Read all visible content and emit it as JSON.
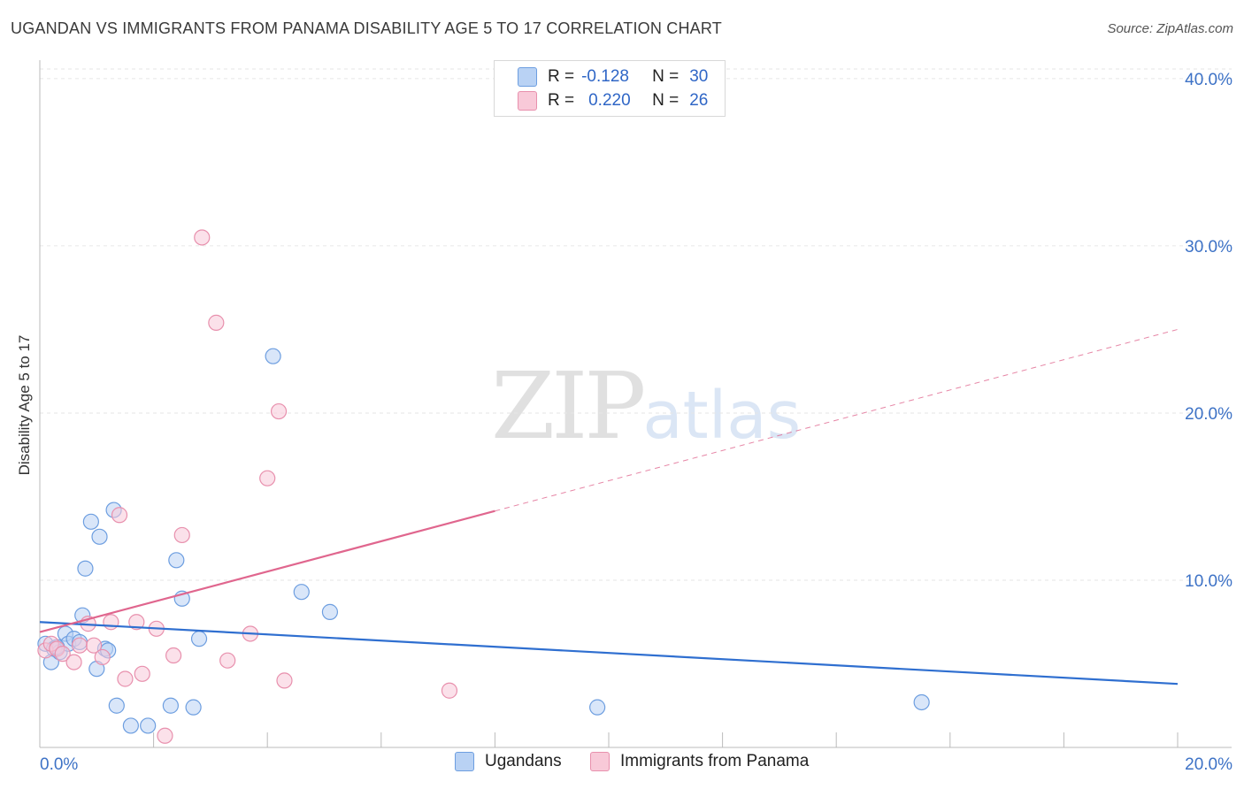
{
  "title": "UGANDAN VS IMMIGRANTS FROM PANAMA DISABILITY AGE 5 TO 17 CORRELATION CHART",
  "source": "Source: ZipAtlas.com",
  "watermark": {
    "zip": "ZIP",
    "atlas": "atlas"
  },
  "legend": {
    "r_label": "R =",
    "n_label": "N =",
    "series": [
      {
        "name": "Ugandans",
        "r": "-0.128",
        "n": "30"
      },
      {
        "name": "Immigrants from Panama",
        "r": "0.220",
        "n": "26"
      }
    ]
  },
  "colors": {
    "blue_fill": "#b9d2f4",
    "blue_stroke": "#6d9ee0",
    "blue_line": "#2f6fd0",
    "pink_fill": "#f8c9d8",
    "pink_stroke": "#e890ad",
    "pink_line": "#e0668e",
    "axis_text": "#3d72c6",
    "grid": "#e6e6e6"
  },
  "chart_data": {
    "type": "scatter",
    "title": "UGANDAN VS IMMIGRANTS FROM PANAMA DISABILITY AGE 5 TO 17 CORRELATION CHART",
    "xlabel": "",
    "ylabel": "Disability Age 5 to 17",
    "xlim": [
      0,
      20
    ],
    "ylim": [
      0,
      41
    ],
    "x_tick_labels": [
      "0.0%",
      "20.0%"
    ],
    "y_ticks": [
      10,
      20,
      30,
      40
    ],
    "y_tick_labels": [
      "10.0%",
      "20.0%",
      "30.0%",
      "40.0%"
    ],
    "grid": true,
    "series": [
      {
        "name": "Ugandans",
        "r": -0.128,
        "n": 30,
        "points": [
          [
            0.1,
            6.2
          ],
          [
            0.2,
            5.1
          ],
          [
            0.25,
            5.9
          ],
          [
            0.35,
            5.7
          ],
          [
            0.45,
            6.8
          ],
          [
            0.5,
            6.2
          ],
          [
            0.6,
            6.5
          ],
          [
            0.7,
            6.3
          ],
          [
            0.75,
            7.9
          ],
          [
            0.8,
            10.7
          ],
          [
            0.9,
            13.5
          ],
          [
            1.0,
            4.7
          ],
          [
            1.05,
            12.6
          ],
          [
            1.15,
            5.9
          ],
          [
            1.2,
            5.8
          ],
          [
            1.3,
            14.2
          ],
          [
            1.35,
            2.5
          ],
          [
            1.6,
            1.3
          ],
          [
            1.9,
            1.3
          ],
          [
            2.3,
            2.5
          ],
          [
            2.4,
            11.2
          ],
          [
            2.5,
            8.9
          ],
          [
            2.7,
            2.4
          ],
          [
            2.8,
            6.5
          ],
          [
            4.1,
            23.4
          ],
          [
            4.6,
            9.3
          ],
          [
            5.1,
            8.1
          ],
          [
            9.8,
            2.4
          ],
          [
            15.5,
            2.7
          ],
          [
            0.3,
            6.0
          ]
        ],
        "trend": {
          "x": [
            0,
            20
          ],
          "y": [
            7.5,
            3.8
          ]
        }
      },
      {
        "name": "Immigrants from Panama",
        "r": 0.22,
        "n": 26,
        "points": [
          [
            0.1,
            5.8
          ],
          [
            0.2,
            6.2
          ],
          [
            0.3,
            5.9
          ],
          [
            0.4,
            5.6
          ],
          [
            0.6,
            5.1
          ],
          [
            0.7,
            6.1
          ],
          [
            0.85,
            7.4
          ],
          [
            0.95,
            6.1
          ],
          [
            1.1,
            5.4
          ],
          [
            1.25,
            7.5
          ],
          [
            1.4,
            13.9
          ],
          [
            1.5,
            4.1
          ],
          [
            1.7,
            7.5
          ],
          [
            1.8,
            4.4
          ],
          [
            2.05,
            7.1
          ],
          [
            2.35,
            5.5
          ],
          [
            2.5,
            12.7
          ],
          [
            2.85,
            30.5
          ],
          [
            3.1,
            25.4
          ],
          [
            3.3,
            5.2
          ],
          [
            3.7,
            6.8
          ],
          [
            4.0,
            16.1
          ],
          [
            4.2,
            20.1
          ],
          [
            4.3,
            4.0
          ],
          [
            7.2,
            3.4
          ],
          [
            2.2,
            0.7
          ]
        ],
        "trend": {
          "x": [
            0,
            20
          ],
          "y": [
            6.9,
            25.0
          ],
          "solid_until_x": 8.0
        }
      }
    ]
  }
}
